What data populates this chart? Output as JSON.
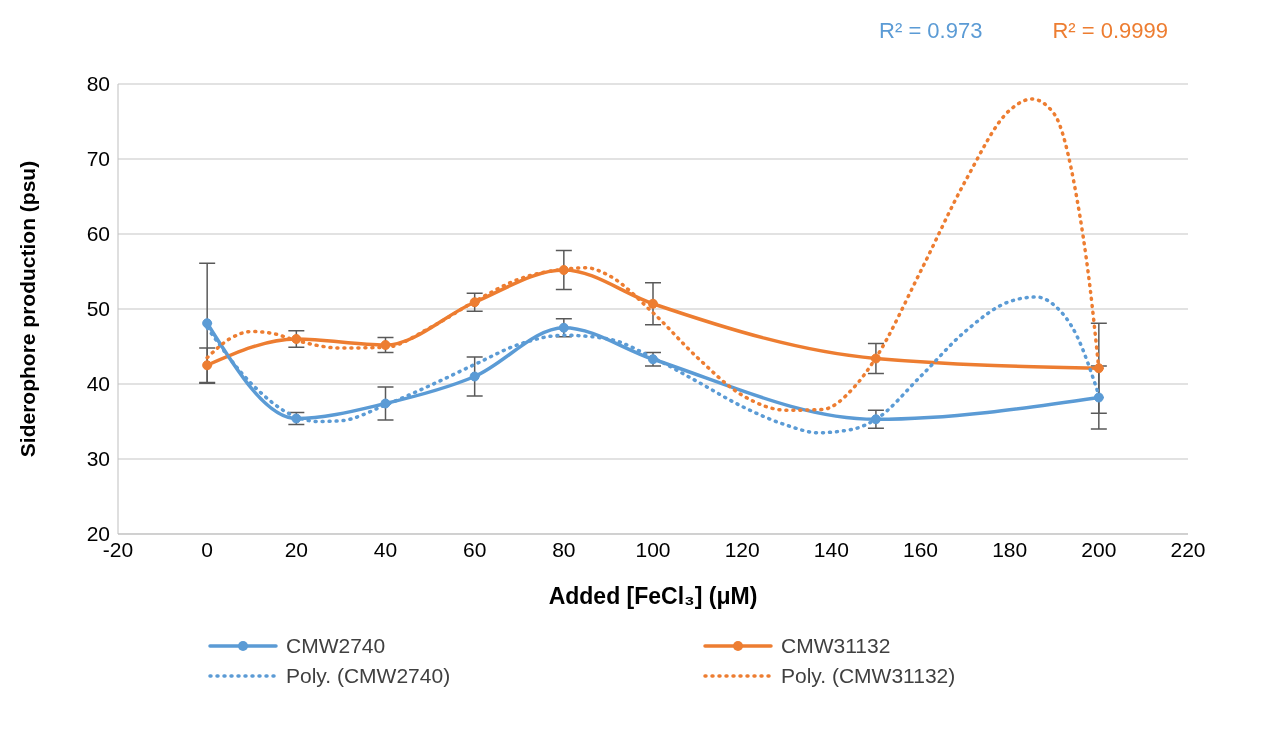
{
  "chart_data": {
    "type": "line",
    "xlabel": "Added [FeCl₃] (μM)",
    "ylabel": "Siderophore production (psu)",
    "xlim": [
      -20,
      220
    ],
    "xticks": [
      -20,
      0,
      20,
      40,
      60,
      80,
      100,
      120,
      140,
      160,
      180,
      200,
      220
    ],
    "ylim": [
      20,
      80
    ],
    "yticks": [
      20,
      30,
      40,
      50,
      60,
      70,
      80
    ],
    "grid": "y",
    "legend": "bottom",
    "annotations": [
      "R² = 0.973",
      "R² = 0.9999"
    ],
    "series": [
      {
        "name": "CMW2740",
        "color": "#5b9bd5",
        "marker": "circle",
        "line_style": "solid",
        "x": [
          0,
          20,
          40,
          60,
          80,
          100,
          150,
          200
        ],
        "values": [
          48.1,
          35.4,
          37.4,
          41.0,
          47.5,
          43.3,
          35.3,
          38.2
        ],
        "errors": [
          8,
          0.8,
          2.2,
          2.6,
          1.2,
          0.9,
          1.2,
          4.2
        ]
      },
      {
        "name": "CMW31132",
        "color": "#ed7d31",
        "marker": "circle",
        "line_style": "solid",
        "x": [
          0,
          20,
          40,
          60,
          80,
          100,
          150,
          200
        ],
        "values": [
          42.5,
          46.0,
          45.2,
          50.9,
          55.2,
          50.7,
          43.4,
          42.1
        ],
        "errors": [
          2.3,
          1.1,
          1.0,
          1.2,
          2.6,
          2.8,
          2.0,
          6
        ]
      },
      {
        "name": "Poly. (CMW2740)",
        "color": "#5b9bd5",
        "marker": "none",
        "line_style": "dotted",
        "x": [
          0,
          10,
          20,
          25,
          30,
          40,
          50,
          60,
          70,
          80,
          90,
          100,
          110,
          120,
          130,
          137,
          145,
          150,
          160,
          170,
          180,
          186,
          190,
          195,
          200
        ],
        "values": [
          47.5,
          40,
          35.6,
          35,
          35.1,
          37.2,
          39.8,
          42.6,
          45.3,
          46.5,
          46,
          43.5,
          40.3,
          37,
          34.5,
          33.5,
          34,
          35.3,
          41,
          47,
          51,
          51.6,
          50.5,
          46.5,
          38.5
        ]
      },
      {
        "name": "Poly. (CMW31132)",
        "color": "#ed7d31",
        "marker": "none",
        "line_style": "dotted",
        "x": [
          0,
          5,
          10,
          15,
          20,
          30,
          40,
          50,
          60,
          70,
          80,
          85,
          90,
          100,
          110,
          120,
          130,
          138,
          145,
          150,
          160,
          170,
          180,
          185,
          190,
          195,
          198,
          200
        ],
        "values": [
          43.5,
          46,
          47,
          46.7,
          45.8,
          44.8,
          44.9,
          47.5,
          51,
          54,
          55.3,
          55.5,
          54.5,
          49.5,
          43.5,
          38.5,
          36.5,
          36.6,
          39.5,
          43.5,
          55,
          67,
          76.5,
          78,
          76,
          65,
          53,
          42
        ]
      }
    ]
  }
}
